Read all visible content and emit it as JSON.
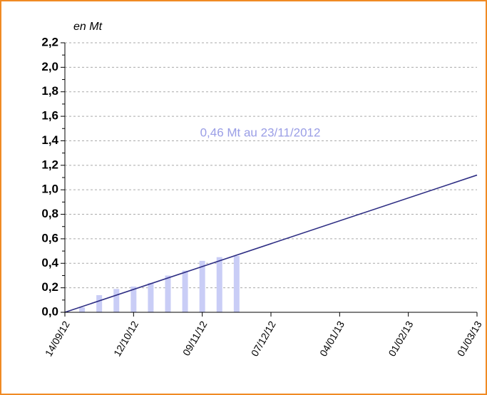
{
  "chart_data": {
    "type": "bar+line",
    "y_unit_label": "en Mt",
    "annotation": "0,46 Mt au 23/11/2012",
    "xlim": [
      "14/09/12",
      "01/03/13"
    ],
    "xticks": [
      "14/09/12",
      "12/10/12",
      "09/11/12",
      "07/12/12",
      "04/01/13",
      "01/02/13",
      "01/03/13"
    ],
    "ylim": [
      0,
      2.2
    ],
    "yticks": [
      {
        "value": 0,
        "label": "0,0"
      },
      {
        "value": 0.2,
        "label": "0,2"
      },
      {
        "value": 0.4,
        "label": "0,4"
      },
      {
        "value": 0.6,
        "label": "0,6"
      },
      {
        "value": 0.8,
        "label": "0,8"
      },
      {
        "value": 1.0,
        "label": "1,0"
      },
      {
        "value": 1.2,
        "label": "1,2"
      },
      {
        "value": 1.4,
        "label": "1,4"
      },
      {
        "value": 1.6,
        "label": "1,6"
      },
      {
        "value": 1.8,
        "label": "1,8"
      },
      {
        "value": 2.0,
        "label": "2,0"
      },
      {
        "value": 2.2,
        "label": "2,2"
      }
    ],
    "grid": true,
    "series": [
      {
        "type": "bar",
        "color": "#c9cdf6",
        "x": [
          "21/09/12",
          "28/09/12",
          "05/10/12",
          "12/10/12",
          "19/10/12",
          "26/10/12",
          "02/11/12",
          "09/11/12",
          "16/11/12",
          "23/11/12"
        ],
        "values": [
          0.04,
          0.14,
          0.19,
          0.21,
          0.24,
          0.3,
          0.34,
          0.42,
          0.45,
          0.46
        ]
      },
      {
        "type": "line",
        "color": "#2e2e84",
        "x": [
          "14/09/12",
          "01/03/13"
        ],
        "values": [
          0,
          1.12
        ]
      }
    ]
  }
}
